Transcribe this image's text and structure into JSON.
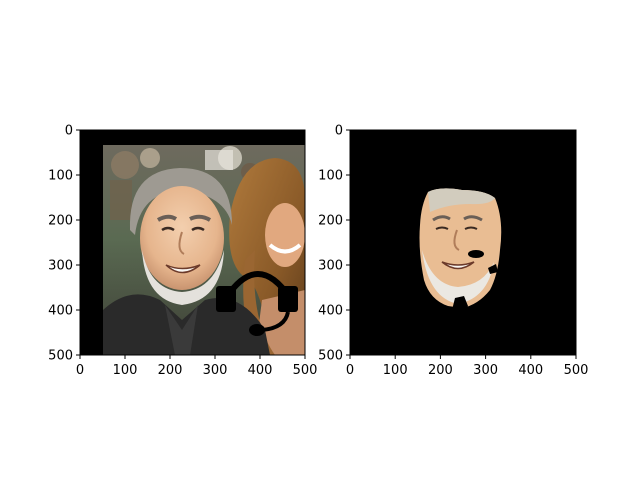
{
  "figure": {
    "panels": [
      {
        "id": "left",
        "kind": "photo",
        "x_ticks": [
          "0",
          "100",
          "200",
          "300",
          "400",
          "500"
        ],
        "y_ticks": [
          "0",
          "100",
          "200",
          "300",
          "400",
          "500"
        ],
        "x_range": [
          0,
          500
        ],
        "y_range": [
          0,
          500
        ],
        "y_inverted": true,
        "content": {
          "subject": "smiling bearded older man",
          "background": "blurred crowd with long-haired woman",
          "overlay_icon": "headset-icon"
        }
      },
      {
        "id": "right",
        "kind": "face-mask",
        "x_ticks": [
          "0",
          "100",
          "200",
          "300",
          "400",
          "500"
        ],
        "y_ticks": [
          "0",
          "100",
          "200",
          "300",
          "400",
          "500"
        ],
        "x_range": [
          0,
          500
        ],
        "y_range": [
          0,
          500
        ],
        "y_inverted": true,
        "content": {
          "subject": "segmented face region",
          "background_color": "#000000"
        }
      }
    ]
  }
}
